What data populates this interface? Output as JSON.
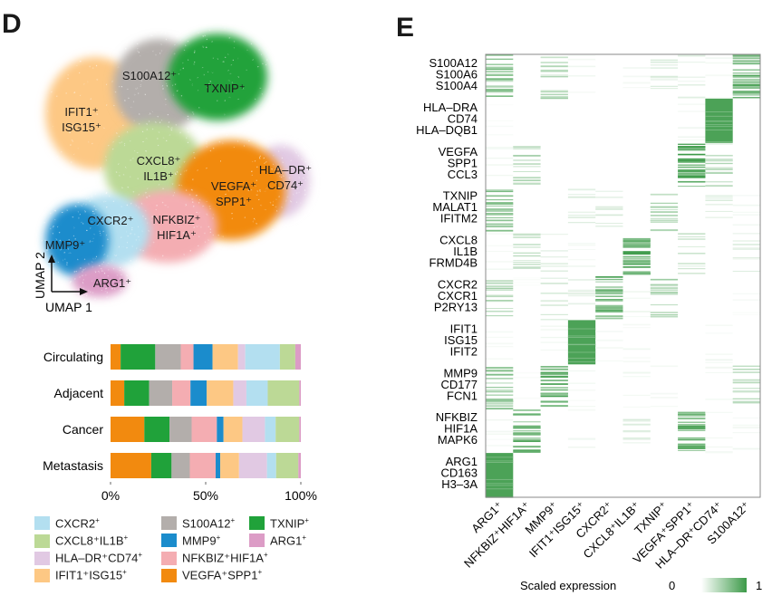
{
  "panels": {
    "d_label": "D",
    "e_label": "E"
  },
  "clusters": [
    {
      "key": "cxcr2",
      "label": "CXCR2",
      "color": "#b3dff0"
    },
    {
      "key": "cxcl8",
      "label": "CXCL8⁺IL1B",
      "color": "#bcd996"
    },
    {
      "key": "hla",
      "label": "HLA–DR⁺CD74",
      "color": "#e1c9e3"
    },
    {
      "key": "ifit1",
      "label": "IFIT1⁺ISG15",
      "color": "#fdc884"
    },
    {
      "key": "s100a12",
      "label": "S100A12",
      "color": "#b3aeab"
    },
    {
      "key": "mmp9",
      "label": "MMP9",
      "color": "#1b8ccc"
    },
    {
      "key": "nfkbiz",
      "label": "NFKBIZ⁺HIF1A",
      "color": "#f4adb2"
    },
    {
      "key": "vegfa",
      "label": "VEGFA⁺SPP1",
      "color": "#f28a0f"
    },
    {
      "key": "txnip",
      "label": "TXNIP",
      "color": "#20a23a"
    },
    {
      "key": "arg1",
      "label": "ARG1",
      "color": "#dc9cc6"
    }
  ],
  "umap": {
    "xlabel": "UMAP 1",
    "ylabel": "UMAP 2",
    "cluster_labels": [
      {
        "key": "s100a12",
        "lines": [
          "S100A12⁺"
        ]
      },
      {
        "key": "txnip",
        "lines": [
          "TXNIP⁺"
        ]
      },
      {
        "key": "ifit1",
        "lines": [
          "IFIT1⁺",
          "ISG15⁺"
        ]
      },
      {
        "key": "cxcl8",
        "lines": [
          "CXCL8⁺",
          "IL1B⁺"
        ]
      },
      {
        "key": "hla",
        "lines": [
          "HLA–DR⁺",
          "CD74⁺"
        ]
      },
      {
        "key": "vegfa",
        "lines": [
          "VEGFA⁺",
          "SPP1⁺"
        ]
      },
      {
        "key": "cxcr2",
        "lines": [
          "CXCR2⁺"
        ]
      },
      {
        "key": "nfkbiz",
        "lines": [
          "NFKBIZ⁺",
          "HIF1A⁺"
        ]
      },
      {
        "key": "mmp9",
        "lines": [
          "MMP9⁺"
        ]
      },
      {
        "key": "arg1",
        "lines": [
          "ARG1⁺"
        ]
      }
    ]
  },
  "chart_data": [
    {
      "type": "scatter",
      "title": "UMAP of myeloid cell clusters",
      "xlabel": "UMAP 1",
      "ylabel": "UMAP 2",
      "series": [
        "CXCR2⁺",
        "CXCL8⁺IL1B⁺",
        "HLA–DR⁺CD74⁺",
        "IFIT1⁺ISG15⁺",
        "S100A12⁺",
        "MMP9⁺",
        "NFKBIZ⁺HIF1A⁺",
        "VEGFA⁺SPP1⁺",
        "TXNIP⁺",
        "ARG1⁺"
      ]
    },
    {
      "type": "bar",
      "stacked": true,
      "orientation": "horizontal",
      "categories": [
        "Circulating",
        "Adjacent",
        "Cancer",
        "Metastasis"
      ],
      "stack_order": [
        "vegfa",
        "txnip",
        "s100a12",
        "nfkbiz",
        "mmp9",
        "ifit1",
        "hla",
        "cxcr2",
        "cxcl8",
        "arg1"
      ],
      "series": [
        {
          "name": "VEGFA⁺SPP1⁺",
          "key": "vegfa",
          "values": [
            5.3,
            7.2,
            17.7,
            21.4
          ]
        },
        {
          "name": "TXNIP⁺",
          "key": "txnip",
          "values": [
            18.2,
            13.1,
            13.2,
            10.7
          ]
        },
        {
          "name": "S100A12⁺",
          "key": "s100a12",
          "values": [
            13.4,
            12.1,
            11.6,
            9.6
          ]
        },
        {
          "name": "NFKBIZ⁺HIF1A⁺",
          "key": "nfkbiz",
          "values": [
            6.7,
            9.6,
            13.2,
            13.6
          ]
        },
        {
          "name": "MMP9⁺",
          "key": "mmp9",
          "values": [
            10.0,
            8.5,
            3.5,
            2.4
          ]
        },
        {
          "name": "IFIT1⁺ISG15⁺",
          "key": "ifit1",
          "values": [
            13.4,
            14.0,
            9.9,
            9.9
          ]
        },
        {
          "name": "HLA–DR⁺CD74⁺",
          "key": "hla",
          "values": [
            3.8,
            6.9,
            11.8,
            14.7
          ]
        },
        {
          "name": "CXCR2⁺",
          "key": "cxcr2",
          "values": [
            18.2,
            11.2,
            5.6,
            4.8
          ]
        },
        {
          "name": "CXCL8⁺IL1B⁺",
          "key": "cxcl8",
          "values": [
            8.1,
            16.6,
            12.4,
            11.7
          ]
        },
        {
          "name": "ARG1⁺",
          "key": "arg1",
          "values": [
            2.9,
            0.8,
            0.8,
            1.3
          ]
        }
      ],
      "xlim": [
        0,
        100
      ],
      "xticks": [
        "0%",
        "50%",
        "100%"
      ],
      "xtick_values": [
        0,
        50,
        100
      ],
      "legend": "bottom"
    },
    {
      "type": "heatmap",
      "title": "",
      "columns": [
        "ARG1⁺",
        "NFKBIZ⁺HIF1A⁺",
        "MMP9⁺",
        "IFIT1⁺ISG15⁺",
        "CXCR2⁺",
        "CXCL8⁺IL1B⁺",
        "TXNIP⁺",
        "VEGFA⁺SPP1⁺",
        "HLA–DR⁺CD74⁺",
        "S100A12⁺"
      ],
      "gene_blocks": [
        {
          "genes": [
            "S100A12",
            "S100A6",
            "S100A4"
          ]
        },
        {
          "genes": [
            "HLA–DRA",
            "CD74",
            "HLA–DQB1"
          ]
        },
        {
          "genes": [
            "VEGFA",
            "SPP1",
            "CCL3"
          ]
        },
        {
          "genes": [
            "TXNIP",
            "MALAT1",
            "IFITM2"
          ]
        },
        {
          "genes": [
            "CXCL8",
            "IL1B",
            "FRMD4B"
          ]
        },
        {
          "genes": [
            "CXCR2",
            "CXCR1",
            "P2RY13"
          ]
        },
        {
          "genes": [
            "IFIT1",
            "ISG15",
            "IFIT2"
          ]
        },
        {
          "genes": [
            "MMP9",
            "CD177",
            "FCN1"
          ]
        },
        {
          "genes": [
            "NFKBIZ",
            "HIF1A",
            "MAPK6"
          ]
        },
        {
          "genes": [
            "ARG1",
            "CD163",
            "H3–3A"
          ]
        }
      ],
      "block_intensity": [
        [
          0.45,
          0.0,
          0.3,
          0.05,
          0.0,
          0.05,
          0.15,
          0.1,
          0.05,
          0.55
        ],
        [
          0.03,
          0.0,
          0.0,
          0.0,
          0.0,
          0.0,
          0.0,
          0.05,
          0.95,
          0.0
        ],
        [
          0.05,
          0.3,
          0.0,
          0.0,
          0.0,
          0.0,
          0.0,
          0.65,
          0.25,
          0.0
        ],
        [
          0.45,
          0.0,
          0.0,
          0.12,
          0.12,
          0.0,
          0.3,
          0.0,
          0.12,
          0.05
        ],
        [
          0.05,
          0.25,
          0.12,
          0.05,
          0.0,
          0.6,
          0.0,
          0.2,
          0.0,
          0.12
        ],
        [
          0.3,
          0.02,
          0.15,
          0.12,
          0.55,
          0.05,
          0.3,
          0.0,
          0.0,
          0.03
        ],
        [
          0.05,
          0.0,
          0.05,
          0.95,
          0.05,
          0.05,
          0.0,
          0.0,
          0.05,
          0.0
        ],
        [
          0.45,
          0.02,
          0.6,
          0.05,
          0.0,
          0.05,
          0.05,
          0.0,
          0.05,
          0.25
        ],
        [
          0.05,
          0.55,
          0.0,
          0.05,
          0.0,
          0.12,
          0.0,
          0.55,
          0.05,
          0.05
        ],
        [
          0.95,
          0.0,
          0.0,
          0.0,
          0.0,
          0.0,
          0.0,
          0.0,
          0.0,
          0.0
        ]
      ],
      "colorbar": {
        "label": "Scaled expression",
        "min_label": "0",
        "max_label": "1",
        "min": 0,
        "max": 1,
        "low_color": "#ffffff",
        "high_color": "#3c9a48"
      }
    }
  ]
}
